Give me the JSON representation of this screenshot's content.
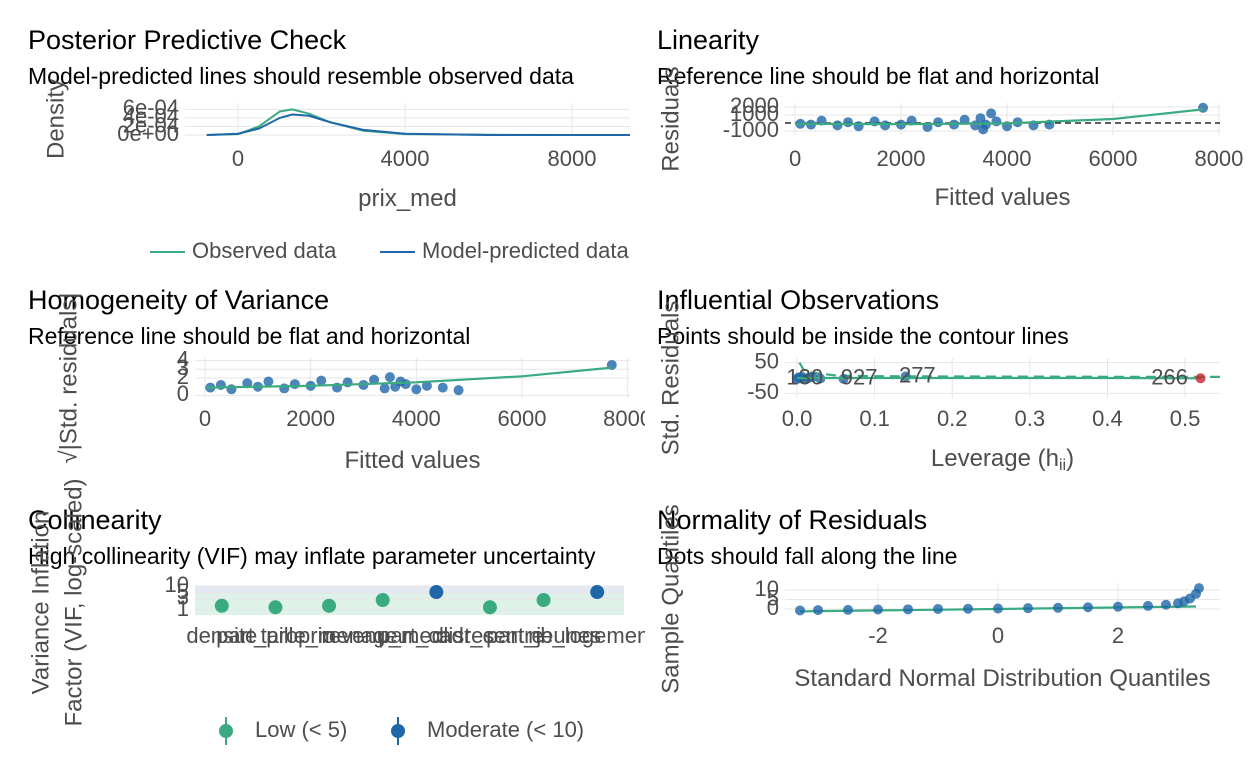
{
  "chart_data": [
    {
      "type": "line",
      "title": "Posterior Predictive Check",
      "subtitle": "Model-predicted lines should resemble observed data",
      "x_label": "prix_med",
      "y_label": "Density",
      "xlim": [
        -1270,
        9390
      ],
      "xticks": [
        0,
        4000,
        8000
      ],
      "ylim": [
        0,
        0.00075
      ],
      "yticks": [
        {
          "value": 0,
          "label": "0e+00"
        },
        {
          "value": 0.0002,
          "label": "2e-04"
        },
        {
          "value": 0.0004,
          "label": "4e-04"
        },
        {
          "value": 0.0006,
          "label": "6e-04"
        }
      ],
      "grid": true,
      "x": [
        -750,
        0,
        500,
        1000,
        1300,
        1700,
        2200,
        3000,
        4000,
        6000,
        8000,
        9390
      ],
      "series": [
        {
          "name": "Observed data",
          "color": "#3aaa80",
          "values": [
            0,
            2e-05,
            0.0002,
            0.00055,
            0.0006,
            0.0005,
            0.0003,
            0.0001,
            2e-05,
            5e-06,
            0,
            0
          ]
        },
        {
          "name": "Model-predicted data",
          "color": "#1f67a8",
          "values": [
            0,
            3e-05,
            0.00015,
            0.0004,
            0.00048,
            0.00045,
            0.0003,
            0.00012,
            3e-05,
            0,
            0,
            0
          ]
        }
      ],
      "legend": "bottom"
    },
    {
      "type": "scatter",
      "title": "Linearity",
      "subtitle": "Reference line should be flat and horizontal",
      "x_label": "Fitted values",
      "y_label": "Residuals",
      "xlim": [
        -190,
        8020
      ],
      "xticks": [
        0,
        2000,
        4000,
        6000,
        8000
      ],
      "ylim": [
        -1500,
        2500
      ],
      "yticks": [
        -1000,
        1000,
        2000
      ],
      "grid": true,
      "reference_line": 0,
      "series": [
        {
          "style": "points",
          "color": "#1f67a8",
          "x": [
            100,
            300,
            500,
            800,
            1000,
            1200,
            1500,
            1700,
            2000,
            2200,
            2500,
            2700,
            3000,
            3200,
            3400,
            3500,
            3600,
            3700,
            3800,
            4000,
            4200,
            4500,
            4800,
            3550,
            7700
          ],
          "values": [
            -100,
            -200,
            300,
            -300,
            100,
            -400,
            200,
            -300,
            -200,
            300,
            -500,
            100,
            -200,
            400,
            -300,
            600,
            -200,
            1200,
            200,
            -400,
            100,
            -300,
            -200,
            -800,
            1900
          ]
        },
        {
          "style": "line",
          "color": "#3aaa80",
          "x": [
            0,
            2000,
            4000,
            6000,
            7700
          ],
          "values": [
            -100,
            -150,
            -50,
            500,
            1700
          ]
        }
      ]
    },
    {
      "type": "scatter",
      "title": "Homogeneity of Variance",
      "subtitle": "Reference line should be flat and horizontal",
      "x_label": "Fitted values",
      "y_label": "√|Std. residuals|",
      "xlim": [
        -190,
        8045
      ],
      "xticks": [
        0,
        2000,
        4000,
        6000,
        8000
      ],
      "ylim": [
        -0.3,
        4.3
      ],
      "yticks": [
        0,
        2,
        3,
        4
      ],
      "grid": true,
      "series": [
        {
          "style": "points",
          "color": "#1f67a8",
          "x": [
            100,
            300,
            500,
            800,
            1000,
            1200,
            1500,
            1700,
            2000,
            2200,
            2500,
            2700,
            3000,
            3200,
            3400,
            3500,
            3600,
            3700,
            3800,
            4000,
            4200,
            4500,
            4800,
            7700
          ],
          "values": [
            0.9,
            1.2,
            0.7,
            1.4,
            1.0,
            1.6,
            0.8,
            1.3,
            1.1,
            1.7,
            0.9,
            1.5,
            1.2,
            1.8,
            0.8,
            2.1,
            1.0,
            1.6,
            1.3,
            0.7,
            1.1,
            0.9,
            0.6,
            3.5
          ]
        },
        {
          "style": "line",
          "color": "#3aaa80",
          "x": [
            0,
            2000,
            4000,
            6000,
            7700
          ],
          "values": [
            0.9,
            1.1,
            1.5,
            2.2,
            3.2
          ]
        }
      ]
    },
    {
      "type": "scatter",
      "title": "Influential Observations",
      "subtitle": "Points should be inside the contour lines",
      "x_label": "Leverage (h",
      "x_label_sub": "ii",
      "x_label_end": ")",
      "y_label": "Std. Residuals",
      "xlim": [
        -0.0155,
        0.545
      ],
      "xticks": [
        {
          "value": 0,
          "label": "0.0"
        },
        0.1,
        0.2,
        0.3,
        0.4,
        0.5
      ],
      "ylim": [
        -65,
        65
      ],
      "yticks": [
        -50,
        50
      ],
      "grid": true,
      "series": [
        {
          "style": "dashed",
          "color": "#3aaa80",
          "x": [
            0.003,
            0.01,
            0.05,
            0.1,
            0.2,
            0.3,
            0.4,
            0.545
          ],
          "values": [
            50,
            20,
            8,
            6,
            5,
            4.5,
            4,
            3.5
          ]
        },
        {
          "style": "points",
          "color": "#1f67a8",
          "x": [
            0.0,
            0.002,
            0.004,
            0.006,
            0.01,
            0.015,
            0.02,
            0.03,
            0.06,
            0.14
          ],
          "values": [
            -3,
            2,
            -1,
            4,
            -2,
            1,
            3,
            -2,
            -3,
            5
          ]
        },
        {
          "style": "line",
          "color": "#3aaa80",
          "x": [
            0,
            0.1,
            0.2,
            0.3,
            0.4,
            0.52
          ],
          "values": [
            0,
            0,
            0,
            0,
            0,
            -1
          ]
        },
        {
          "style": "points",
          "color": "#c0282d",
          "x": [
            0.52
          ],
          "values": [
            -1
          ]
        }
      ],
      "point_labels": [
        {
          "x": 0.01,
          "y": -3,
          "label": "130",
          "color": "#1f67a8"
        },
        {
          "x": 0.08,
          "y": -3,
          "label": "927",
          "color": "#1f67a8"
        },
        {
          "x": 0.155,
          "y": 5,
          "label": "277",
          "color": "#1f67a8"
        },
        {
          "x": 0.48,
          "y": -3,
          "label": "266",
          "color": "#c0282d"
        }
      ]
    },
    {
      "type": "dot",
      "title": "Collinearity",
      "subtitle": "High collinearity (VIF) may inflate parameter uncertainty",
      "y_label": [
        "Variance Inflation",
        "Factor (VIF, log-scaled)"
      ],
      "categories": [
        "densite",
        "part_proprio",
        "taille_menage",
        "revenu_med",
        "part_cadres",
        "dist_centre",
        "part_jeunes",
        "nb_logements"
      ],
      "values": [
        1.5,
        1.3,
        1.5,
        2.6,
        5.6,
        1.3,
        2.6,
        5.6
      ],
      "log_y": true,
      "ylim": [
        0.62,
        17.8
      ],
      "yticks": [
        1,
        3,
        5,
        10
      ],
      "grid": true,
      "levels": [
        {
          "name": "Low (< 5)",
          "max": 5,
          "color": "#3aaa80",
          "band": "#d6efe3"
        },
        {
          "name": "Moderate (< 10)",
          "max": 10,
          "color": "#1f67a8",
          "band": "#dfe3f0"
        }
      ],
      "legend": "bottom"
    },
    {
      "type": "scatter",
      "title": "Normality of Residuals",
      "subtitle": "Dots should fall along the line",
      "x_label": "Standard Normal Distribution Quantiles",
      "y_label": "Sample Quantiles",
      "xlim": [
        -3.55,
        3.7
      ],
      "xticks": [
        -2,
        0,
        2
      ],
      "ylim": [
        -3.2,
        13.7
      ],
      "yticks": [
        0,
        5,
        10
      ],
      "grid": true,
      "series": [
        {
          "style": "line",
          "color": "#3aaa80",
          "x": [
            -3.3,
            3.3
          ],
          "values": [
            -1.3,
            1.3
          ]
        },
        {
          "style": "points",
          "color": "#1f67a8",
          "x": [
            -3.3,
            -3,
            -2.5,
            -2,
            -1.5,
            -1,
            -0.5,
            0,
            0.5,
            1,
            1.5,
            2,
            2.5,
            2.8,
            3,
            3.1,
            3.2,
            3.3,
            3.35
          ],
          "values": [
            -0.8,
            -0.6,
            -0.5,
            -0.3,
            -0.2,
            0,
            0.1,
            0.2,
            0.4,
            0.6,
            0.9,
            1.2,
            1.6,
            2.2,
            3,
            4,
            5.5,
            8,
            11
          ]
        }
      ]
    }
  ]
}
